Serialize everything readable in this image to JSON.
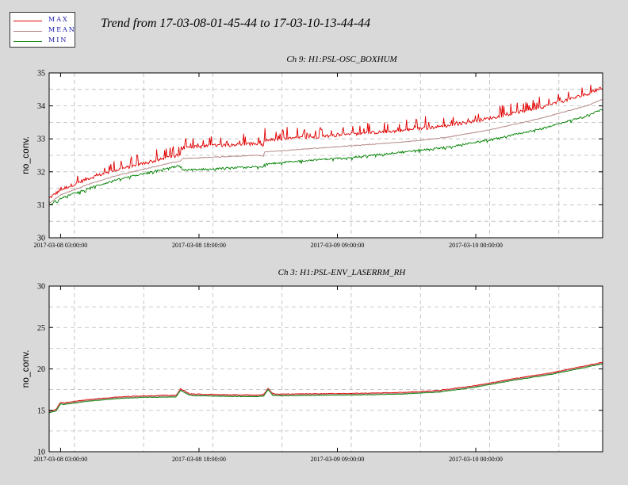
{
  "title": "Trend from 17-03-08-01-45-44 to 17-03-10-13-44-44",
  "legend": [
    {
      "label": "MAX",
      "color": "#e00000"
    },
    {
      "label": "MEAN",
      "color": "#b08080"
    },
    {
      "label": "MIN",
      "color": "#008000"
    }
  ],
  "chart_data": [
    {
      "type": "line",
      "title": "Ch 9: H1:PSL-OSC_BOXHUM",
      "ylabel": "no_conv.",
      "ylim": [
        30,
        35
      ],
      "yticks": [
        30,
        31,
        32,
        33,
        34,
        35
      ],
      "xlim_hours": [
        1.762,
        61.746
      ],
      "xticks": [
        {
          "hour": 3,
          "label": "2017-03-08 03:00:00"
        },
        {
          "hour": 18,
          "label": "2017-03-08 18:00:00"
        },
        {
          "hour": 33,
          "label": "2017-03-09 09:00:00"
        },
        {
          "hour": 48,
          "label": "2017-03-10 00:00:00"
        }
      ],
      "grid": true,
      "series": [
        {
          "name": "MAX",
          "color": "#e00000",
          "noise": 0.05,
          "spike": 0.35,
          "x": [
            1.76,
            3,
            6,
            9,
            12,
            15,
            16,
            16.2,
            20,
            24,
            25,
            25.1,
            30,
            35,
            40,
            45,
            50,
            55,
            60,
            61.75
          ],
          "y": [
            31.2,
            31.45,
            31.8,
            32.05,
            32.25,
            32.45,
            32.52,
            32.72,
            32.8,
            32.85,
            32.8,
            32.95,
            33.05,
            33.15,
            33.25,
            33.4,
            33.65,
            33.95,
            34.35,
            34.55
          ]
        },
        {
          "name": "MEAN",
          "color": "#b08080",
          "noise": 0.012,
          "spike": 0,
          "x": [
            1.76,
            3,
            6,
            9,
            12,
            15,
            16,
            16.2,
            20,
            24,
            25,
            25.1,
            30,
            35,
            40,
            45,
            50,
            55,
            60,
            61.75
          ],
          "y": [
            31.05,
            31.3,
            31.62,
            31.88,
            32.08,
            32.27,
            32.33,
            32.4,
            32.45,
            32.5,
            32.48,
            32.6,
            32.7,
            32.8,
            32.9,
            33.05,
            33.3,
            33.62,
            34.0,
            34.2
          ]
        },
        {
          "name": "MIN",
          "color": "#008000",
          "noise": 0.025,
          "spike": 0.12,
          "x": [
            1.76,
            3,
            6,
            9,
            12,
            15,
            16,
            16.2,
            20,
            24,
            25,
            25.1,
            30,
            35,
            40,
            45,
            50,
            55,
            60,
            61.75
          ],
          "y": [
            31.0,
            31.2,
            31.5,
            31.75,
            31.95,
            32.13,
            32.2,
            32.05,
            32.1,
            32.15,
            32.15,
            32.25,
            32.35,
            32.45,
            32.6,
            32.75,
            33.0,
            33.3,
            33.7,
            33.9
          ]
        }
      ]
    },
    {
      "type": "line",
      "title": "Ch 3: H1:PSL-ENV_LASERRM_RH",
      "ylabel": "no_conv.",
      "ylim": [
        10,
        30
      ],
      "yticks": [
        10,
        15,
        20,
        25,
        30
      ],
      "xlim_hours": [
        1.762,
        61.746
      ],
      "xticks": [
        {
          "hour": 3,
          "label": "2017-03-08 03:00:00"
        },
        {
          "hour": 18,
          "label": "2017-03-08 18:00:00"
        },
        {
          "hour": 33,
          "label": "2017-03-09 09:00:00"
        },
        {
          "hour": 48,
          "label": "2017-03-10 00:00:00"
        }
      ],
      "grid": true,
      "series": [
        {
          "name": "MAX",
          "color": "#e00000",
          "noise": 0.04,
          "spike": 0,
          "x": [
            1.76,
            2.5,
            3,
            3.3,
            6,
            9,
            12,
            14,
            15.5,
            16,
            17,
            18,
            20,
            24,
            25,
            25.5,
            26,
            27,
            30,
            35,
            40,
            44,
            48,
            52,
            56,
            61.75
          ],
          "y": [
            14.9,
            15.1,
            16.0,
            15.9,
            16.3,
            16.6,
            16.75,
            16.8,
            16.8,
            17.6,
            17.0,
            16.95,
            16.9,
            16.85,
            16.9,
            17.7,
            17.0,
            16.95,
            17.0,
            17.05,
            17.15,
            17.4,
            18.0,
            18.8,
            19.5,
            20.8
          ]
        },
        {
          "name": "MEAN",
          "color": "#b08080",
          "noise": 0.02,
          "spike": 0,
          "x": [
            1.76,
            2.5,
            3,
            3.3,
            6,
            9,
            12,
            14,
            15.5,
            16,
            17,
            18,
            20,
            24,
            25,
            25.5,
            26,
            27,
            30,
            35,
            40,
            44,
            48,
            52,
            56,
            61.75
          ],
          "y": [
            14.8,
            15.0,
            15.9,
            15.8,
            16.2,
            16.5,
            16.65,
            16.7,
            16.7,
            17.5,
            16.9,
            16.85,
            16.8,
            16.75,
            16.8,
            17.6,
            16.9,
            16.85,
            16.9,
            16.95,
            17.05,
            17.3,
            17.9,
            18.7,
            19.4,
            20.7
          ]
        },
        {
          "name": "MIN",
          "color": "#008000",
          "noise": 0.03,
          "spike": 0,
          "x": [
            1.76,
            2.5,
            3,
            3.3,
            6,
            9,
            12,
            14,
            15.5,
            16,
            17,
            18,
            20,
            24,
            25,
            25.5,
            26,
            27,
            30,
            35,
            40,
            44,
            48,
            52,
            56,
            61.75
          ],
          "y": [
            14.7,
            14.9,
            15.8,
            15.7,
            16.1,
            16.4,
            16.55,
            16.6,
            16.6,
            17.4,
            16.8,
            16.75,
            16.7,
            16.65,
            16.7,
            17.5,
            16.8,
            16.75,
            16.8,
            16.85,
            16.95,
            17.2,
            17.8,
            18.6,
            19.3,
            20.6
          ]
        }
      ]
    }
  ]
}
